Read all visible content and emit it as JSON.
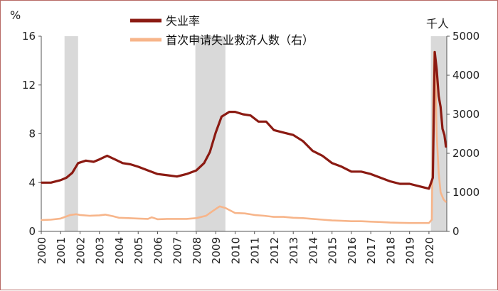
{
  "chart_data": {
    "type": "line",
    "title": "",
    "left_unit": "%",
    "right_unit": "千人",
    "x_range": [
      2000.0,
      2020.92
    ],
    "y_left_range": [
      0,
      16
    ],
    "y_left_ticks": [
      "0",
      "4",
      "8",
      "12",
      "16"
    ],
    "y_right_range": [
      0,
      5000
    ],
    "y_right_ticks": [
      "0",
      "1000",
      "2000",
      "3000",
      "4000",
      "5000"
    ],
    "x_ticks": [
      "2000",
      "2001",
      "2002",
      "2003",
      "2004",
      "2005",
      "2006",
      "2007",
      "2008",
      "2009",
      "2010",
      "2011",
      "2012",
      "2013",
      "2014",
      "2015",
      "2016",
      "2017",
      "2018",
      "2019",
      "2020"
    ],
    "grid": false,
    "legend_position": "top",
    "recession_shading": [
      [
        2001.2,
        2001.9
      ],
      [
        2007.95,
        2009.5
      ],
      [
        2020.1,
        2020.92
      ]
    ],
    "series": [
      {
        "name": "失业率",
        "axis": "left",
        "color": "#8b1a12",
        "points": [
          [
            2000.0,
            4.0
          ],
          [
            2000.5,
            4.0
          ],
          [
            2001.0,
            4.2
          ],
          [
            2001.3,
            4.4
          ],
          [
            2001.6,
            4.8
          ],
          [
            2001.9,
            5.6
          ],
          [
            2002.3,
            5.8
          ],
          [
            2002.7,
            5.7
          ],
          [
            2003.0,
            5.9
          ],
          [
            2003.4,
            6.2
          ],
          [
            2003.8,
            5.9
          ],
          [
            2004.2,
            5.6
          ],
          [
            2004.6,
            5.5
          ],
          [
            2005.0,
            5.3
          ],
          [
            2005.5,
            5.0
          ],
          [
            2006.0,
            4.7
          ],
          [
            2006.5,
            4.6
          ],
          [
            2007.0,
            4.5
          ],
          [
            2007.5,
            4.7
          ],
          [
            2008.0,
            5.0
          ],
          [
            2008.4,
            5.6
          ],
          [
            2008.7,
            6.5
          ],
          [
            2009.0,
            8.1
          ],
          [
            2009.3,
            9.4
          ],
          [
            2009.7,
            9.8
          ],
          [
            2010.0,
            9.8
          ],
          [
            2010.4,
            9.6
          ],
          [
            2010.8,
            9.5
          ],
          [
            2011.2,
            9.0
          ],
          [
            2011.6,
            9.0
          ],
          [
            2012.0,
            8.3
          ],
          [
            2012.5,
            8.1
          ],
          [
            2013.0,
            7.9
          ],
          [
            2013.5,
            7.4
          ],
          [
            2014.0,
            6.6
          ],
          [
            2014.5,
            6.2
          ],
          [
            2015.0,
            5.6
          ],
          [
            2015.5,
            5.3
          ],
          [
            2016.0,
            4.9
          ],
          [
            2016.5,
            4.9
          ],
          [
            2017.0,
            4.7
          ],
          [
            2017.5,
            4.4
          ],
          [
            2018.0,
            4.1
          ],
          [
            2018.5,
            3.9
          ],
          [
            2019.0,
            3.9
          ],
          [
            2019.5,
            3.7
          ],
          [
            2020.0,
            3.5
          ],
          [
            2020.2,
            4.4
          ],
          [
            2020.3,
            14.7
          ],
          [
            2020.4,
            13.3
          ],
          [
            2020.5,
            11.1
          ],
          [
            2020.6,
            10.2
          ],
          [
            2020.7,
            8.4
          ],
          [
            2020.8,
            7.9
          ],
          [
            2020.88,
            6.9
          ]
        ]
      },
      {
        "name": "首次申请失业救济人数（右）",
        "axis": "right",
        "color": "#f7b58a",
        "points": [
          [
            2000.0,
            290
          ],
          [
            2000.5,
            300
          ],
          [
            2001.0,
            330
          ],
          [
            2001.5,
            420
          ],
          [
            2001.8,
            440
          ],
          [
            2002.0,
            420
          ],
          [
            2002.5,
            400
          ],
          [
            2003.0,
            410
          ],
          [
            2003.3,
            430
          ],
          [
            2003.7,
            390
          ],
          [
            2004.0,
            350
          ],
          [
            2004.5,
            340
          ],
          [
            2005.0,
            330
          ],
          [
            2005.5,
            320
          ],
          [
            2005.7,
            360
          ],
          [
            2006.0,
            310
          ],
          [
            2006.5,
            320
          ],
          [
            2007.0,
            320
          ],
          [
            2007.5,
            320
          ],
          [
            2008.0,
            340
          ],
          [
            2008.5,
            400
          ],
          [
            2008.9,
            540
          ],
          [
            2009.2,
            640
          ],
          [
            2009.5,
            600
          ],
          [
            2010.0,
            470
          ],
          [
            2010.5,
            460
          ],
          [
            2011.0,
            420
          ],
          [
            2011.5,
            400
          ],
          [
            2012.0,
            370
          ],
          [
            2012.5,
            370
          ],
          [
            2013.0,
            350
          ],
          [
            2013.5,
            340
          ],
          [
            2014.0,
            320
          ],
          [
            2014.5,
            300
          ],
          [
            2015.0,
            280
          ],
          [
            2015.5,
            270
          ],
          [
            2016.0,
            260
          ],
          [
            2016.5,
            260
          ],
          [
            2017.0,
            250
          ],
          [
            2017.5,
            240
          ],
          [
            2018.0,
            225
          ],
          [
            2018.5,
            220
          ],
          [
            2019.0,
            215
          ],
          [
            2019.5,
            215
          ],
          [
            2020.0,
            215
          ],
          [
            2020.15,
            300
          ],
          [
            2020.22,
            3300
          ],
          [
            2020.27,
            4600
          ],
          [
            2020.32,
            4300
          ],
          [
            2020.4,
            2500
          ],
          [
            2020.5,
            1500
          ],
          [
            2020.6,
            1000
          ],
          [
            2020.75,
            820
          ],
          [
            2020.88,
            750
          ]
        ]
      }
    ]
  }
}
